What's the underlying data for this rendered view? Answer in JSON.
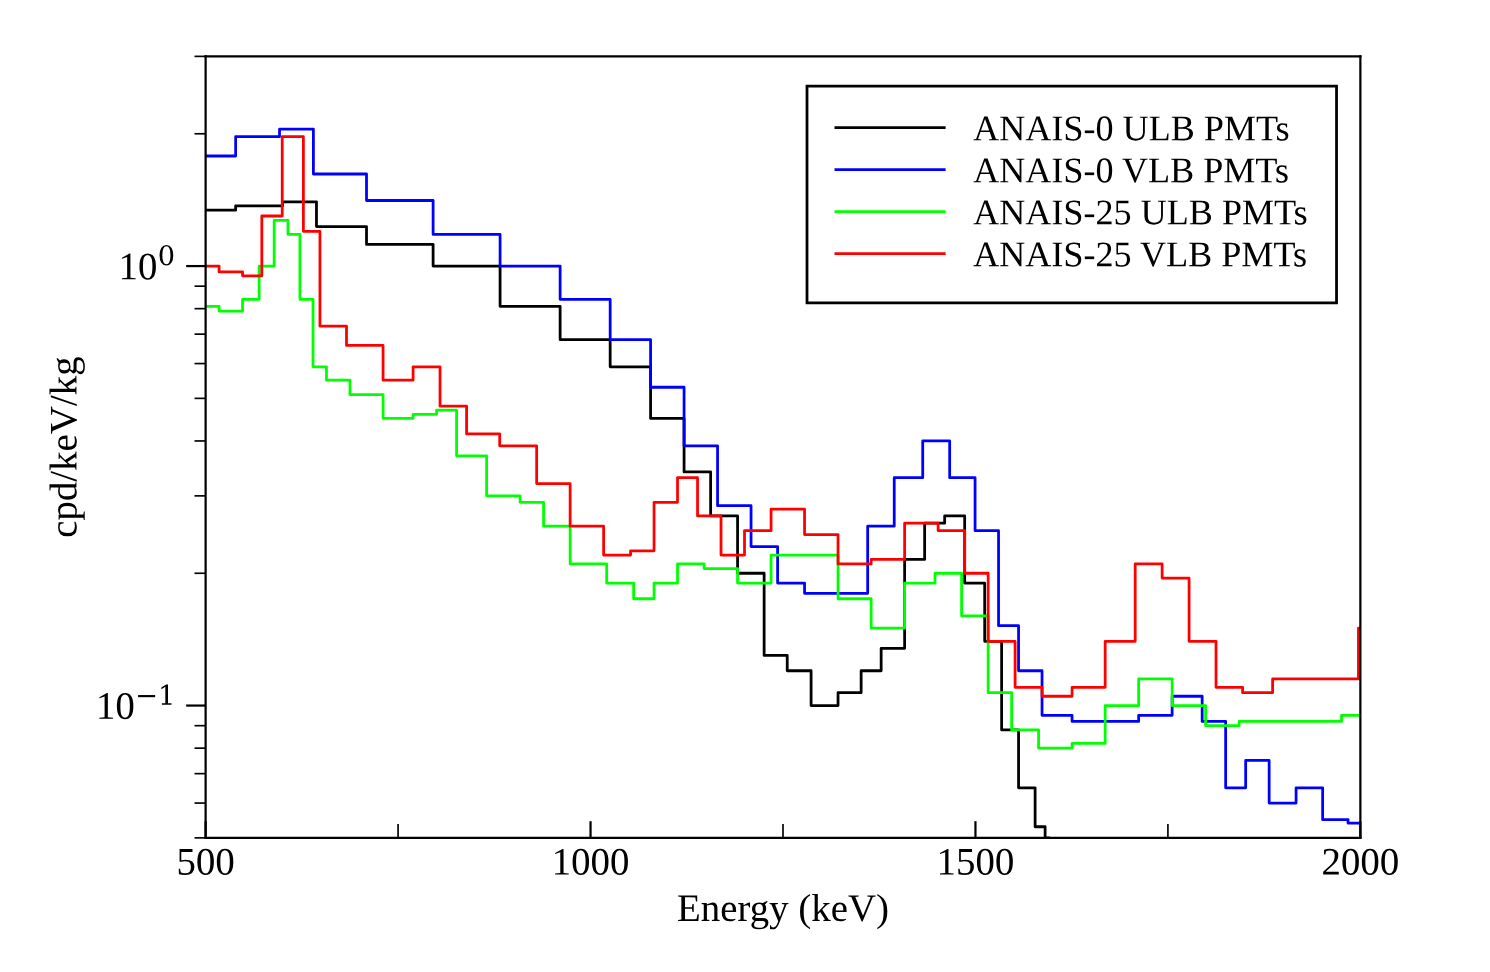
{
  "chart_data": {
    "type": "step",
    "xlabel": "Energy (keV)",
    "ylabel": "cpd/keV/kg",
    "log": "y",
    "grid": false,
    "legend": "top right",
    "xlim": [
      500,
      2000
    ],
    "xticks": [
      500,
      1000,
      1500,
      2000,
      {
        "value": 750,
        "label": null
      },
      {
        "value": 1250,
        "label": null
      },
      {
        "value": 1750,
        "label": null
      }
    ],
    "ylim": [
      0.05,
      3
    ],
    "yticks": [
      {
        "value": 1,
        "label": "10$^{0}$"
      },
      {
        "value": 0.1,
        "label": "10$^{−1}$"
      },
      {
        "value": 0.05,
        "label": null
      },
      {
        "value": 0.06,
        "label": null
      },
      {
        "value": 0.07,
        "label": null
      },
      {
        "value": 0.08,
        "label": null
      },
      {
        "value": 0.09,
        "label": null
      },
      {
        "value": 0.2,
        "label": null
      },
      {
        "value": 0.3,
        "label": null
      },
      {
        "value": 0.4,
        "label": null
      },
      {
        "value": 0.5,
        "label": null
      },
      {
        "value": 0.6,
        "label": null
      },
      {
        "value": 0.7,
        "label": null
      },
      {
        "value": 0.8,
        "label": null
      },
      {
        "value": 0.9,
        "label": null
      },
      {
        "value": 2,
        "label": null
      },
      {
        "value": 3,
        "label": null
      }
    ],
    "series": [
      {
        "name": "ANAIS-0 ULB PMTs",
        "color": "#000000",
        "x": [
          500,
          578,
          622,
          666,
          752,
          839,
          926,
          995,
          1056,
          1100,
          1143,
          1169,
          1213,
          1238,
          1273,
          1300,
          1343,
          1360,
          1395,
          1421,
          1447,
          1473,
          1499,
          1525,
          1543,
          1569,
          1586,
          1595
        ],
        "values": [
          1.34,
          1.37,
          1.4,
          1.23,
          1.12,
          1.0,
          0.81,
          0.68,
          0.59,
          0.45,
          0.34,
          0.27,
          0.2,
          0.13,
          0.12,
          0.1,
          0.107,
          0.12,
          0.135,
          0.215,
          0.26,
          0.27,
          0.19,
          0.14,
          0.088,
          0.065,
          0.053,
          0.05
        ]
      },
      {
        "name": "ANAIS-0 VLB PMTs",
        "color": "#0000ff",
        "x": [
          500,
          578,
          614,
          666,
          752,
          839,
          926,
          995,
          1056,
          1100,
          1143,
          1187,
          1230,
          1256,
          1300,
          1343,
          1377,
          1412,
          1451,
          1482,
          1517,
          1543,
          1569,
          1604,
          1647,
          1690,
          1734,
          1777,
          1812,
          1838,
          1864,
          1899,
          1934,
          1968,
          2000
        ],
        "values": [
          1.78,
          1.97,
          2.05,
          1.62,
          1.41,
          1.18,
          1.0,
          0.84,
          0.68,
          0.53,
          0.39,
          0.285,
          0.23,
          0.19,
          0.18,
          0.18,
          0.256,
          0.33,
          0.4,
          0.33,
          0.25,
          0.152,
          0.12,
          0.095,
          0.092,
          0.092,
          0.095,
          0.105,
          0.092,
          0.065,
          0.075,
          0.06,
          0.065,
          0.055,
          0.054
        ]
      },
      {
        "name": "ANAIS-25 ULB PMTs",
        "color": "#00ff00",
        "x": [
          500,
          535,
          561,
          578,
          600,
          614,
          631,
          648,
          666,
          709,
          752,
          787,
          813,
          839,
          891,
          926,
          952,
          995,
          1047,
          1065,
          1100,
          1126,
          1169,
          1213,
          1256,
          1300,
          1343,
          1386,
          1430,
          1465,
          1499,
          1534,
          1560,
          1604,
          1647,
          1690,
          1734,
          1777,
          1821,
          1864,
          1908,
          1951,
          2000
        ],
        "values": [
          0.81,
          0.79,
          0.84,
          1.0,
          1.27,
          1.18,
          0.84,
          0.59,
          0.55,
          0.51,
          0.45,
          0.46,
          0.47,
          0.37,
          0.3,
          0.29,
          0.256,
          0.21,
          0.19,
          0.175,
          0.19,
          0.21,
          0.205,
          0.19,
          0.22,
          0.22,
          0.175,
          0.15,
          0.19,
          0.2,
          0.16,
          0.107,
          0.088,
          0.08,
          0.082,
          0.1,
          0.115,
          0.1,
          0.09,
          0.092,
          0.092,
          0.092,
          0.095
        ]
      },
      {
        "name": "ANAIS-25 VLB PMTs",
        "color": "#ff0000",
        "x": [
          500,
          535,
          561,
          585,
          614,
          640,
          657,
          709,
          752,
          787,
          822,
          856,
          908,
          952,
          995,
          1039,
          1065,
          1100,
          1126,
          1152,
          1187,
          1213,
          1256,
          1300,
          1343,
          1386,
          1430,
          1473,
          1499,
          1534,
          1569,
          1604,
          1647,
          1690,
          1725,
          1760,
          1795,
          1830,
          1864,
          1908,
          1951,
          1995,
          2000
        ],
        "values": [
          1.0,
          0.97,
          0.95,
          1.3,
          1.97,
          1.2,
          0.73,
          0.66,
          0.55,
          0.59,
          0.48,
          0.415,
          0.39,
          0.32,
          0.256,
          0.22,
          0.225,
          0.29,
          0.33,
          0.27,
          0.22,
          0.25,
          0.28,
          0.245,
          0.21,
          0.215,
          0.26,
          0.25,
          0.2,
          0.14,
          0.11,
          0.105,
          0.11,
          0.14,
          0.21,
          0.195,
          0.14,
          0.11,
          0.107,
          0.115,
          0.115,
          0.115,
          0.15
        ]
      }
    ]
  }
}
